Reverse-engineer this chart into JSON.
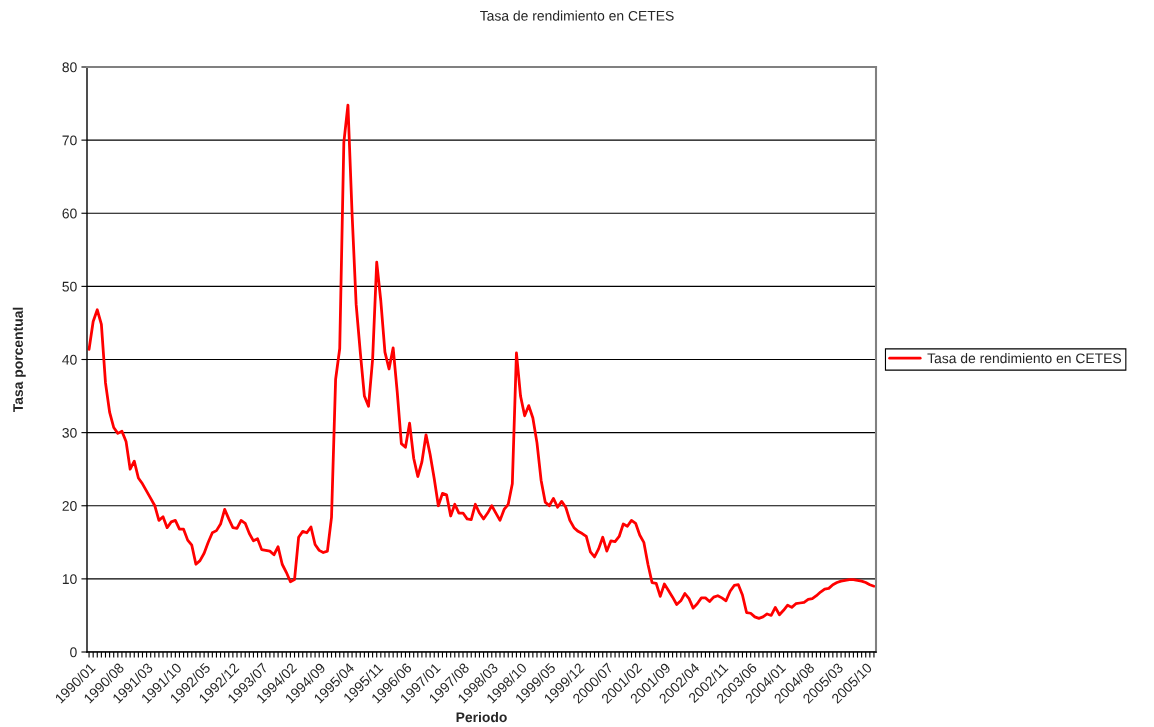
{
  "chart_data": {
    "type": "line",
    "title": "Tasa de rendimiento en CETES",
    "xlabel": "Periodo",
    "ylabel": "Tasa porcentual",
    "categories": [
      "1990/01",
      null,
      null,
      null,
      null,
      null,
      null,
      "1990/08",
      null,
      null,
      null,
      null,
      null,
      null,
      "1991/03",
      null,
      null,
      null,
      null,
      null,
      null,
      "1991/10",
      null,
      null,
      null,
      null,
      null,
      null,
      "1992/05",
      null,
      null,
      null,
      null,
      null,
      null,
      "1992/12",
      null,
      null,
      null,
      null,
      null,
      null,
      "1993/07",
      null,
      null,
      null,
      null,
      null,
      null,
      "1994/02",
      null,
      null,
      null,
      null,
      null,
      null,
      "1994/09",
      null,
      null,
      null,
      null,
      null,
      null,
      "1995/04",
      null,
      null,
      null,
      null,
      null,
      null,
      "1995/11",
      null,
      null,
      null,
      null,
      null,
      null,
      "1996/06",
      null,
      null,
      null,
      null,
      null,
      null,
      "1997/01",
      null,
      null,
      null,
      null,
      null,
      null,
      "1997/08",
      null,
      null,
      null,
      null,
      null,
      null,
      "1998/03",
      null,
      null,
      null,
      null,
      null,
      null,
      "1998/10",
      null,
      null,
      null,
      null,
      null,
      null,
      "1999/05",
      null,
      null,
      null,
      null,
      null,
      null,
      "1999/12",
      null,
      null,
      null,
      null,
      null,
      null,
      "2000/07",
      null,
      null,
      null,
      null,
      null,
      null,
      "2001/02",
      null,
      null,
      null,
      null,
      null,
      null,
      "2001/09",
      null,
      null,
      null,
      null,
      null,
      null,
      "2002/04",
      null,
      null,
      null,
      null,
      null,
      null,
      "2002/11",
      null,
      null,
      null,
      null,
      null,
      null,
      "2003/06",
      null,
      null,
      null,
      null,
      null,
      null,
      "2004/01",
      null,
      null,
      null,
      null,
      null,
      null,
      "2004/08",
      null,
      null,
      null,
      null,
      null,
      null,
      "2005/03",
      null,
      null,
      null,
      null,
      null,
      null,
      "2005/10",
      null,
      null
    ],
    "series": [
      {
        "name": "Tasa de rendimiento en CETES",
        "color": "#ff0000",
        "values": [
          41.4,
          45.2,
          46.8,
          44.8,
          36.8,
          32.8,
          30.7,
          29.9,
          30.2,
          28.8,
          25.0,
          26.1,
          23.8,
          23.0,
          22.0,
          21.0,
          20.0,
          18.0,
          18.5,
          17.0,
          17.8,
          18.0,
          16.8,
          16.8,
          15.3,
          14.6,
          12.0,
          12.5,
          13.5,
          15.0,
          16.3,
          16.6,
          17.5,
          19.5,
          18.2,
          17.0,
          16.9,
          18.0,
          17.6,
          16.2,
          15.2,
          15.5,
          14.0,
          13.9,
          13.8,
          13.3,
          14.4,
          12.0,
          10.9,
          9.6,
          9.9,
          15.7,
          16.5,
          16.3,
          17.1,
          14.7,
          13.9,
          13.6,
          13.8,
          18.4,
          37.3,
          41.5,
          69.7,
          74.8,
          60.0,
          47.5,
          41.0,
          35.0,
          33.6,
          40.0,
          53.3,
          48.0,
          41.0,
          38.7,
          41.6,
          35.5,
          28.5,
          28.0,
          31.3,
          26.5,
          24.0,
          26.0,
          29.7,
          27.0,
          23.7,
          20.0,
          21.7,
          21.5,
          18.6,
          20.2,
          19.0,
          19.0,
          18.2,
          18.1,
          20.2,
          19.0,
          18.2,
          19.0,
          20.0,
          19.0,
          18.0,
          19.5,
          20.2,
          23.0,
          40.9,
          35.0,
          32.3,
          33.7,
          32.0,
          28.6,
          23.5,
          20.5,
          20.0,
          21.0,
          19.8,
          20.6,
          19.8,
          18.0,
          17.0,
          16.5,
          16.2,
          15.8,
          13.7,
          13.0,
          14.1,
          15.7,
          13.8,
          15.2,
          15.1,
          15.8,
          17.5,
          17.2,
          18.0,
          17.6,
          16.0,
          15.0,
          12.0,
          9.5,
          9.4,
          7.6,
          9.3,
          8.4,
          7.5,
          6.5,
          7.0,
          8.0,
          7.3,
          6.0,
          6.6,
          7.4,
          7.4,
          6.9,
          7.5,
          7.7,
          7.4,
          7.0,
          8.3,
          9.1,
          9.2,
          7.8,
          5.4,
          5.3,
          4.8,
          4.6,
          4.8,
          5.2,
          5.0,
          6.1,
          5.1,
          5.7,
          6.4,
          6.1,
          6.6,
          6.7,
          6.8,
          7.2,
          7.3,
          7.7,
          8.2,
          8.6,
          8.7,
          9.2,
          9.5,
          9.7,
          9.8,
          9.9,
          9.9,
          9.8,
          9.7,
          9.5,
          9.2,
          9.0
        ]
      }
    ],
    "ylim": [
      0,
      80
    ],
    "yticks": [
      0,
      10,
      20,
      30,
      40,
      50,
      60,
      70,
      80
    ],
    "grid": "y",
    "legend": "right",
    "marker": "none",
    "line_style": "solid"
  }
}
